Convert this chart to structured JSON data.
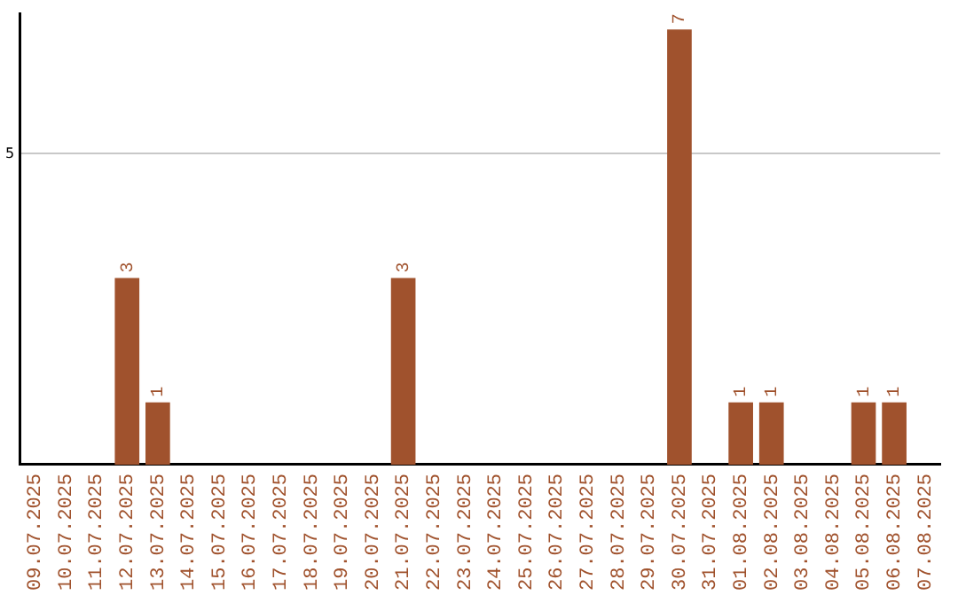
{
  "chart_data": {
    "type": "bar",
    "categories": [
      "09.07.2025",
      "10.07.2025",
      "11.07.2025",
      "12.07.2025",
      "13.07.2025",
      "14.07.2025",
      "15.07.2025",
      "16.07.2025",
      "17.07.2025",
      "18.07.2025",
      "19.07.2025",
      "20.07.2025",
      "21.07.2025",
      "22.07.2025",
      "23.07.2025",
      "24.07.2025",
      "25.07.2025",
      "26.07.2025",
      "27.07.2025",
      "28.07.2025",
      "29.07.2025",
      "30.07.2025",
      "31.07.2025",
      "01.08.2025",
      "02.08.2025",
      "03.08.2025",
      "04.08.2025",
      "05.08.2025",
      "06.08.2025",
      "07.08.2025"
    ],
    "values": [
      0,
      0,
      0,
      3,
      1,
      0,
      0,
      0,
      0,
      0,
      0,
      0,
      3,
      0,
      0,
      0,
      0,
      0,
      0,
      0,
      0,
      7,
      0,
      1,
      1,
      0,
      0,
      1,
      1,
      0
    ],
    "value_labels": [
      null,
      null,
      null,
      "3",
      "1",
      null,
      null,
      null,
      null,
      null,
      null,
      null,
      "3",
      null,
      null,
      null,
      null,
      null,
      null,
      null,
      null,
      "7",
      null,
      "1",
      "1",
      null,
      null,
      "1",
      "1",
      null
    ],
    "color": "#a0522d",
    "ylim": [
      0,
      7.25
    ],
    "yticks": [
      5
    ],
    "grid": "y",
    "legend": false
  }
}
